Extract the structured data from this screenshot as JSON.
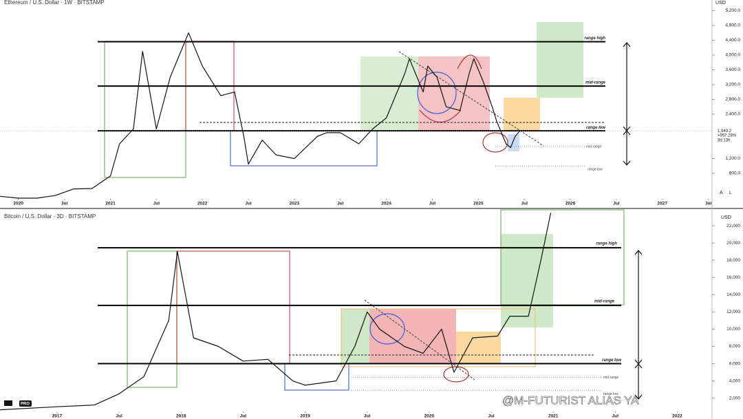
{
  "chart_data": [
    {
      "type": "line",
      "title": "Ethereum / U.S. Dollar · 1W · BITSTAMP",
      "currency": "USD",
      "x": [
        2019.8,
        2020.0,
        2020.2,
        2020.4,
        2020.6,
        2020.8,
        2021.0,
        2021.1,
        2021.25,
        2021.35,
        2021.5,
        2021.65,
        2021.85,
        2022.0,
        2022.2,
        2022.35,
        2022.45,
        2022.5,
        2022.65,
        2022.8,
        2023.0,
        2023.25,
        2023.35,
        2023.5,
        2023.7,
        2023.85,
        2024.0,
        2024.2,
        2024.25,
        2024.4,
        2024.45,
        2024.55,
        2024.65,
        2024.8,
        2024.9,
        2024.95,
        2025.05,
        2025.15,
        2025.2,
        2025.3,
        2025.35,
        2025.4,
        2025.45
      ],
      "values": [
        180,
        130,
        130,
        200,
        380,
        390,
        730,
        1600,
        2000,
        4100,
        2000,
        3400,
        4600,
        3700,
        2900,
        3000,
        1800,
        1050,
        1700,
        1300,
        1200,
        1800,
        1900,
        1900,
        1600,
        2000,
        2300,
        3500,
        3900,
        3000,
        3700,
        3400,
        2600,
        2500,
        3500,
        3900,
        3300,
        2600,
        2200,
        1600,
        1500,
        1800,
        1949.2
      ],
      "color": "#111111",
      "xlim": [
        2019.8,
        2027.54
      ],
      "xticks": [
        2020,
        {
          "value": 2020.5,
          "label": "Jul"
        },
        2021,
        {
          "value": 2021.5,
          "label": "Jul"
        },
        2022,
        {
          "value": 2022.5,
          "label": "Jul"
        },
        2023,
        {
          "value": 2023.5,
          "label": "Jul"
        },
        2024,
        {
          "value": 2024.5,
          "label": "Jul"
        },
        2025,
        {
          "value": 2025.5,
          "label": "Jul"
        },
        2026,
        {
          "value": 2026.5,
          "label": "Jul"
        },
        2027,
        {
          "value": 2027.5,
          "label": "Jul"
        }
      ],
      "ylim": [
        186,
        5488
      ],
      "yticks": [
        {
          "value": 800,
          "label": "800.0"
        },
        {
          "value": 1200,
          "label": "1,200.0"
        },
        {
          "value": 2400,
          "label": "2,400.0"
        },
        {
          "value": 2800,
          "label": "2,800.0"
        },
        {
          "value": 3200,
          "label": "3,200.0"
        },
        {
          "value": 3600,
          "label": "3,600.0"
        },
        {
          "value": 4000,
          "label": "4,000.0"
        },
        {
          "value": 4400,
          "label": "4,400.0"
        },
        {
          "value": 4800,
          "label": "4,800.0"
        },
        {
          "value": 5200,
          "label": "5,200.0"
        }
      ],
      "levels": [
        {
          "value": 4360,
          "label": "range high",
          "style": "solid"
        },
        {
          "value": 3160,
          "label": "mid-range",
          "style": "solid"
        },
        {
          "value": 1950,
          "label": "range low",
          "style": "solid"
        },
        {
          "value": 1525,
          "label": "mid range",
          "style": "dotted"
        },
        {
          "value": 1000,
          "label": "range low",
          "style": "dotted"
        }
      ],
      "last_price": {
        "value": 1949.2,
        "label": "1,949.2"
      },
      "change_label": "+957.28%",
      "countdown": "3d 13h",
      "scale_buttons": [
        "A",
        "L"
      ]
    },
    {
      "type": "line",
      "title": "Bitcoin / U.S. Dollar · 3D · BITSTAMP",
      "currency": "USD",
      "x": [
        2016.54,
        2017.0,
        2017.3,
        2017.5,
        2017.7,
        2017.9,
        2017.97,
        2018.1,
        2018.3,
        2018.5,
        2018.7,
        2018.9,
        2019.0,
        2019.25,
        2019.4,
        2019.5,
        2019.6,
        2019.8,
        2019.95,
        2020.1,
        2020.2,
        2020.35,
        2020.55,
        2020.65,
        2020.8,
        2020.9,
        2020.98
      ],
      "values": [
        650,
        1000,
        1200,
        2500,
        4500,
        11000,
        19000,
        9000,
        8000,
        6300,
        6500,
        4000,
        3500,
        4000,
        8000,
        12000,
        10000,
        8000,
        7200,
        10000,
        5000,
        9000,
        9200,
        11500,
        11500,
        18000,
        23500
      ],
      "color": "#111111",
      "xlim": [
        2016.54,
        2022.28
      ],
      "xticks": [
        2017,
        {
          "value": 2017.5,
          "label": "Jul"
        },
        2018,
        {
          "value": 2018.5,
          "label": "Jul"
        },
        2019,
        {
          "value": 2019.5,
          "label": "Jul"
        },
        2020,
        {
          "value": 2020.5,
          "label": "Jul"
        },
        2021,
        {
          "value": 2021.5,
          "label": "Jul"
        },
        2022
      ],
      "ylim": [
        300,
        23600
      ],
      "yticks": [
        {
          "value": 2000,
          "label": "2,000"
        },
        {
          "value": 4000,
          "label": "4,000"
        },
        {
          "value": 6000,
          "label": "6,000"
        },
        {
          "value": 8000,
          "label": "8,000"
        },
        {
          "value": 10000,
          "label": "10,000"
        },
        {
          "value": 12000,
          "label": "12,000"
        },
        {
          "value": 14000,
          "label": "14,000"
        },
        {
          "value": 16000,
          "label": "16,000"
        },
        {
          "value": 18000,
          "label": "18,000"
        },
        {
          "value": 20000,
          "label": "20,000"
        },
        {
          "value": 22000,
          "label": "22,000"
        }
      ],
      "levels": [
        {
          "value": 19440,
          "label": "range high",
          "style": "solid"
        },
        {
          "value": 12760,
          "label": "mid-range",
          "style": "solid"
        },
        {
          "value": 6010,
          "label": "range low",
          "style": "solid"
        },
        {
          "value": 4400,
          "label": "mid range",
          "style": "dotted"
        },
        {
          "value": 2870,
          "label": "range low",
          "style": "dotted"
        }
      ],
      "logo": "PRO"
    }
  ],
  "watermark": "@M-FUTURIST  ALIAS YA"
}
